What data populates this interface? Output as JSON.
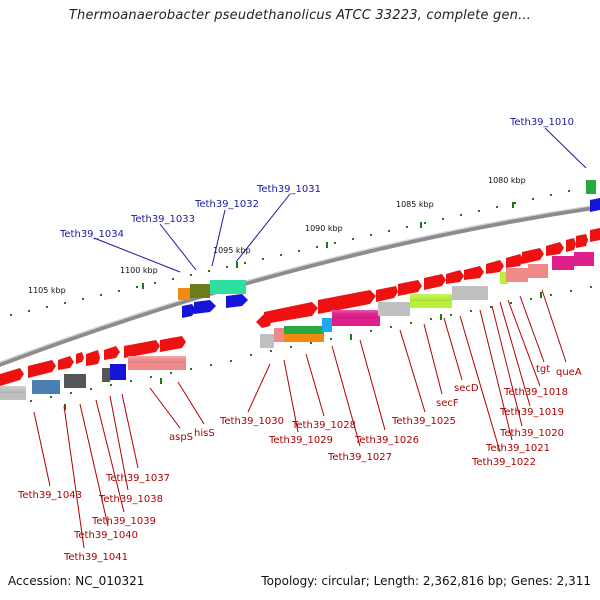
{
  "title": "Thermoanaerobacter pseudethanolicus ATCC 33223, complete gen...",
  "footer": {
    "accession": "Accession: NC_010321",
    "stats": "Topology: circular; Length: 2,362,816 bp; Genes: 2,311"
  },
  "scale_labels": [
    "1080 kbp",
    "1085 kbp",
    "1090 kbp",
    "1095 kbp",
    "1100 kbp",
    "1105 kbp"
  ],
  "top_labels": [
    "Teth39_1010",
    "Teth39_1031",
    "Teth39_1032",
    "Teth39_1033",
    "Teth39_1034"
  ],
  "bottom_labels": [
    "Teth39_1043",
    "Teth39_1040",
    "Teth39_1039",
    "Teth39_1038",
    "Teth39_1037",
    "Teth39_1041",
    "aspS",
    "hisS",
    "Teth39_1030",
    "Teth39_1029",
    "Teth39_1028",
    "Teth39_1027",
    "Teth39_1026",
    "Teth39_1025",
    "secF",
    "secD",
    "Teth39_1022",
    "Teth39_1021",
    "Teth39_1020",
    "Teth39_1019",
    "Teth39_1018",
    "tgt",
    "queA"
  ],
  "colors": {
    "backbone": "#8c8c8c",
    "gene_red": "#ee1111",
    "gene_pink": "#f08a8a",
    "gene_magenta": "#e0208a",
    "gene_green": "#2aa840",
    "gene_lime": "#b8f03a",
    "gene_blue": "#1414d8",
    "gene_teal": "#2ee0a0",
    "gene_orange": "#f08a10",
    "gene_gray": "#c0c0c0",
    "gene_steel": "#4a7fb0",
    "gene_dark": "#555555",
    "label_blue": "#1a1aa0",
    "label_red": "#b00000",
    "tick_green": "#1a7a1a"
  }
}
